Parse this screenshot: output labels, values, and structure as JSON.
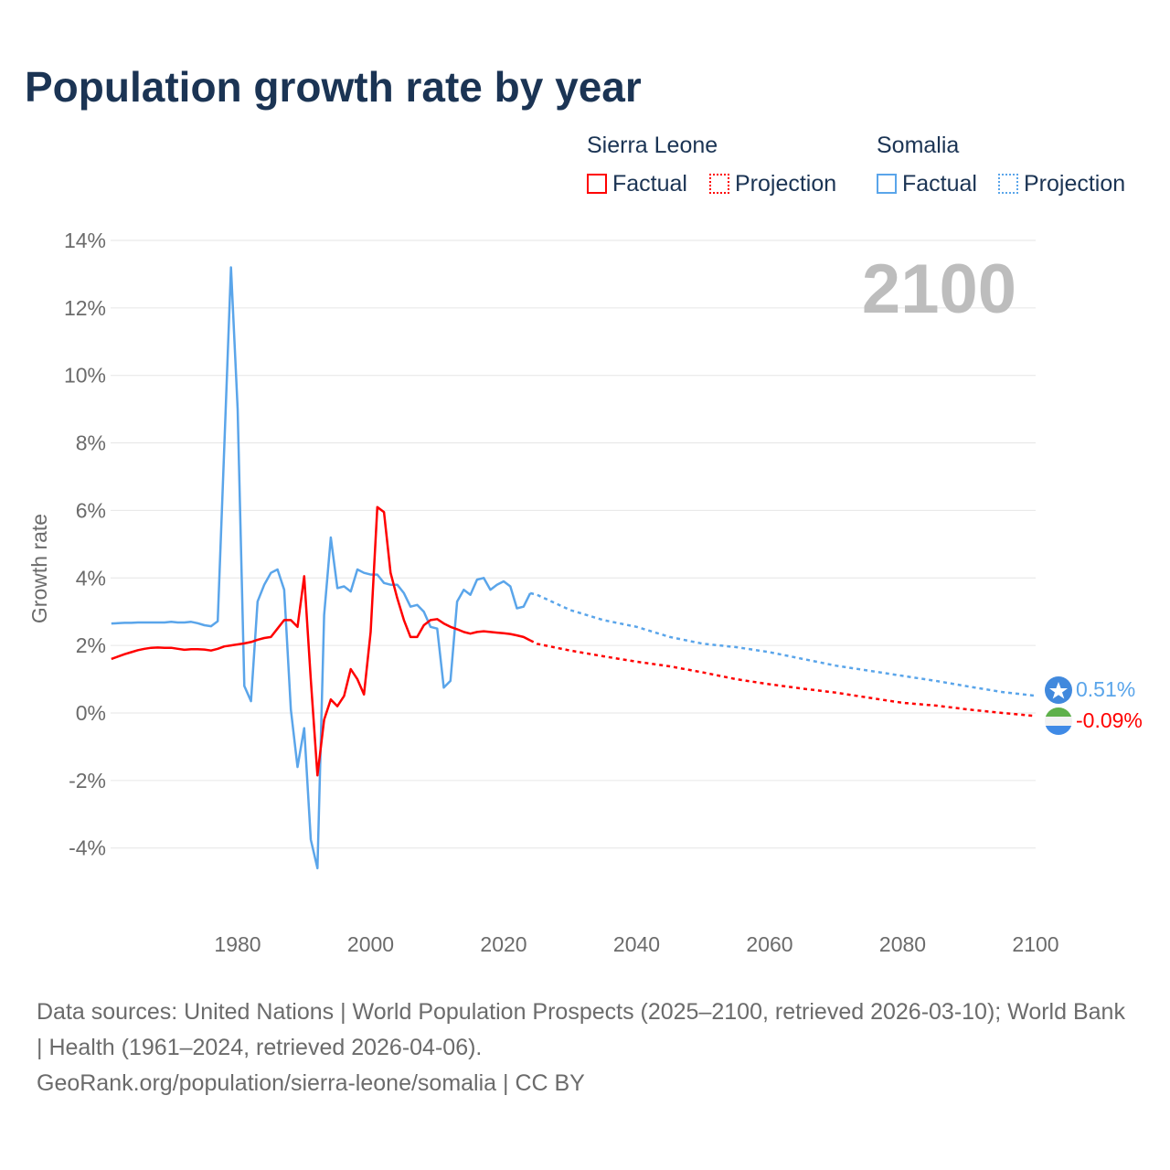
{
  "chart_data": {
    "type": "line",
    "title": "Population growth rate by year",
    "xlabel": "",
    "ylabel": "Growth rate",
    "xlim": [
      1961,
      2100
    ],
    "ylim": [
      -6,
      14
    ],
    "x_ticks": [
      1980,
      2000,
      2020,
      2040,
      2060,
      2080,
      2100
    ],
    "y_ticks": [
      -4,
      -2,
      0,
      2,
      4,
      6,
      8,
      10,
      12,
      14
    ],
    "y_tick_labels": [
      "-4%",
      "-2%",
      "0%",
      "2%",
      "4%",
      "6%",
      "8%",
      "10%",
      "12%",
      "14%"
    ],
    "grid": true,
    "watermark_year": "2100",
    "legend": {
      "placement": "top-right",
      "groups": [
        {
          "name": "Sierra Leone",
          "items": [
            "Factual",
            "Projection"
          ]
        },
        {
          "name": "Somalia",
          "items": [
            "Factual",
            "Projection"
          ]
        }
      ]
    },
    "series": [
      {
        "name": "Sierra Leone",
        "kind": "Factual",
        "color": "#ff0000",
        "x_start": 1961,
        "values": [
          1.6,
          1.67,
          1.74,
          1.8,
          1.86,
          1.9,
          1.93,
          1.94,
          1.93,
          1.93,
          1.9,
          1.87,
          1.89,
          1.89,
          1.88,
          1.85,
          1.9,
          1.97,
          2.0,
          2.03,
          2.06,
          2.1,
          2.17,
          2.22,
          2.25,
          2.5,
          2.75,
          2.75,
          2.55,
          4.05,
          1.0,
          -1.85,
          -0.2,
          0.4,
          0.2,
          0.5,
          1.3,
          1.0,
          0.55,
          2.4,
          6.1,
          5.95,
          4.15,
          3.4,
          2.75,
          2.25,
          2.25,
          2.6,
          2.75,
          2.78,
          2.65,
          2.55,
          2.48,
          2.4,
          2.35,
          2.4,
          2.42,
          2.4,
          2.38,
          2.36,
          2.34,
          2.3,
          2.25,
          2.15
        ]
      },
      {
        "name": "Sierra Leone",
        "kind": "Projection",
        "color": "#ff0000",
        "x": [
          2024,
          2025,
          2030,
          2035,
          2040,
          2045,
          2050,
          2055,
          2060,
          2065,
          2070,
          2075,
          2080,
          2085,
          2090,
          2095,
          2100
        ],
        "values": [
          2.15,
          2.05,
          1.85,
          1.68,
          1.52,
          1.38,
          1.2,
          1.0,
          0.85,
          0.72,
          0.6,
          0.45,
          0.3,
          0.22,
          0.1,
          0.0,
          -0.09
        ]
      },
      {
        "name": "Somalia",
        "kind": "Factual",
        "color": "#5aa5ea",
        "x_start": 1961,
        "values": [
          2.65,
          2.66,
          2.67,
          2.67,
          2.68,
          2.68,
          2.68,
          2.68,
          2.68,
          2.7,
          2.68,
          2.68,
          2.7,
          2.66,
          2.6,
          2.57,
          2.72,
          7.9,
          13.2,
          9.0,
          0.8,
          0.35,
          3.3,
          3.8,
          4.15,
          4.25,
          3.65,
          0.1,
          -1.6,
          -0.45,
          -3.75,
          -4.6,
          2.9,
          5.2,
          3.7,
          3.75,
          3.6,
          4.25,
          4.15,
          4.1,
          4.1,
          3.85,
          3.8,
          3.8,
          3.55,
          3.15,
          3.2,
          3.0,
          2.55,
          2.5,
          0.75,
          0.95,
          3.3,
          3.65,
          3.5,
          3.95,
          4.0,
          3.65,
          3.8,
          3.9,
          3.75,
          3.1,
          3.15,
          3.55
        ]
      },
      {
        "name": "Somalia",
        "kind": "Projection",
        "color": "#5aa5ea",
        "x": [
          2024,
          2025,
          2030,
          2035,
          2040,
          2045,
          2050,
          2055,
          2060,
          2065,
          2070,
          2075,
          2080,
          2085,
          2090,
          2095,
          2100
        ],
        "values": [
          3.55,
          3.5,
          3.05,
          2.75,
          2.55,
          2.25,
          2.05,
          1.95,
          1.8,
          1.6,
          1.4,
          1.25,
          1.1,
          0.95,
          0.78,
          0.62,
          0.51
        ]
      }
    ],
    "end_labels": [
      {
        "country": "Somalia",
        "value": "0.51%",
        "color": "#5aa5ea",
        "flag": "somalia-flag"
      },
      {
        "country": "Sierra Leone",
        "value": "-0.09%",
        "color": "#ff0000",
        "flag": "sierra-leone-flag"
      }
    ]
  },
  "footer": {
    "sources": "Data sources: United Nations | World Population Prospects (2025–2100, retrieved 2026-03-10); World Bank | Health (1961–2024, retrieved 2026-04-06).",
    "link": "GeoRank.org/population/sierra-leone/somalia | CC BY"
  }
}
